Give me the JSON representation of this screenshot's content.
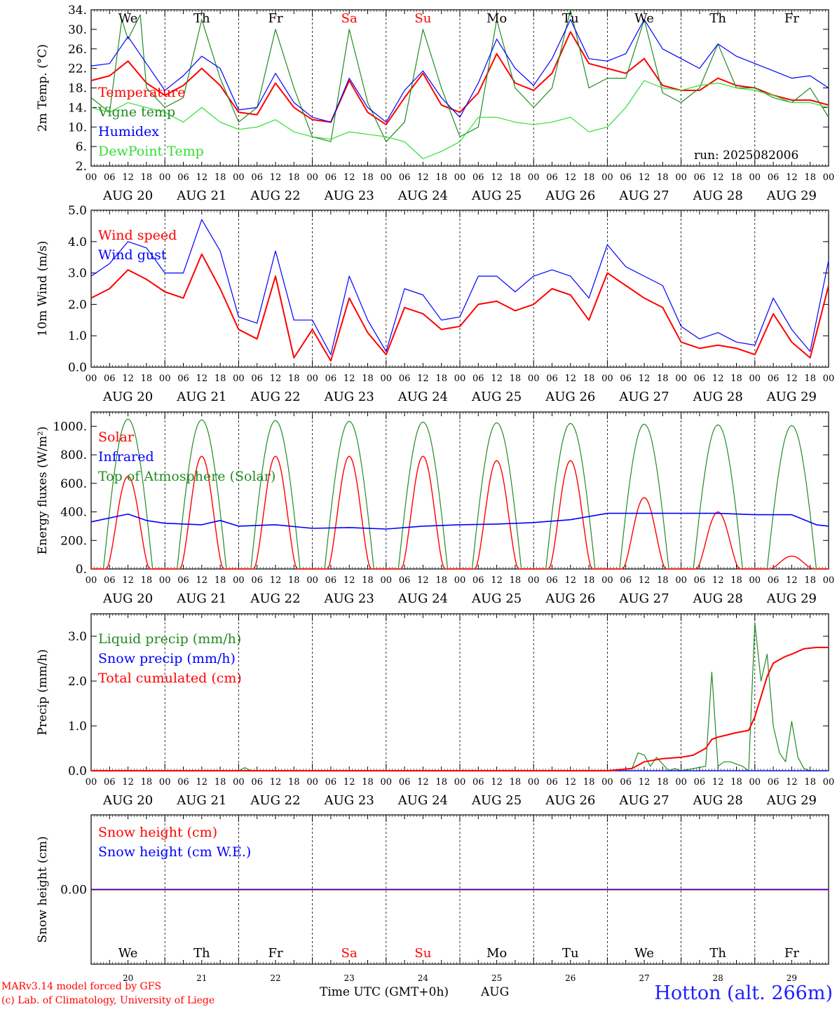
{
  "credits": [
    "MARv3.14 model forced by GFS",
    "(c) Lab. of Climatology, University of Liege"
  ],
  "run": "run: 2025082006",
  "station": "Hotton (alt. 266m)",
  "x_title": "Time UTC (GMT+0h)",
  "month": "AUG",
  "hour_ticks": [
    "00",
    "06",
    "12",
    "18"
  ],
  "end_tick": "00",
  "day_labels": [
    "AUG 20",
    "AUG 21",
    "AUG 22",
    "AUG 23",
    "AUG 24",
    "AUG 25",
    "AUG 26",
    "AUG 27",
    "AUG 28",
    "AUG 29"
  ],
  "day_numbers": [
    "20",
    "21",
    "22",
    "23",
    "24",
    "25",
    "26",
    "27",
    "28",
    "29"
  ],
  "weekdays": [
    "We",
    "Th",
    "Fr",
    "Sa",
    "Su",
    "Mo",
    "Tu",
    "We",
    "Th",
    "Fr"
  ],
  "weekend_color": "#ff0000",
  "colors": {
    "red": "#ff0000",
    "green": "#228B22",
    "blue": "#0000ff",
    "lightgreen": "#33dd33",
    "station": "#1f1fff"
  },
  "chart_data": [
    {
      "type": "line",
      "ylabel": "2m Temp. (°C)",
      "ylim": [
        2,
        34
      ],
      "yticks": [
        "2.",
        "6.",
        "10.",
        "14.",
        "18.",
        "22.",
        "26.",
        "30.",
        "34."
      ],
      "x_unit": "hours since AUG 20 00 UTC",
      "series": [
        {
          "name": "Temperature",
          "color": "red",
          "x": [
            0,
            6,
            12,
            18,
            24,
            30,
            36,
            42,
            48,
            54,
            60,
            66,
            72,
            78,
            84,
            90,
            96,
            102,
            108,
            114,
            120,
            126,
            132,
            138,
            144,
            150,
            156,
            162,
            168,
            174,
            180,
            186,
            192,
            198,
            204,
            210,
            216,
            222,
            228,
            234,
            240
          ],
          "y": [
            19.5,
            20.5,
            23.5,
            19,
            16.5,
            18.5,
            22,
            18.5,
            13,
            12.5,
            19,
            14,
            11.5,
            11,
            19.5,
            13,
            10.5,
            16,
            21,
            14.5,
            13,
            17,
            25,
            19,
            17.5,
            21,
            29.5,
            23,
            22,
            21,
            24,
            18.5,
            17.5,
            17.5,
            20,
            18.5,
            18,
            16.5,
            15.5,
            15.5,
            14.5
          ]
        },
        {
          "name": "Vigne temp",
          "color": "green",
          "x": [
            0,
            6,
            10,
            12,
            16,
            18,
            24,
            30,
            36,
            42,
            48,
            54,
            60,
            66,
            72,
            78,
            84,
            90,
            96,
            102,
            108,
            114,
            120,
            126,
            132,
            138,
            144,
            150,
            156,
            162,
            168,
            174,
            180,
            186,
            192,
            198,
            204,
            210,
            216,
            222,
            228,
            234,
            240
          ],
          "y": [
            16,
            13,
            32,
            28,
            33,
            18,
            14,
            16,
            32,
            20,
            11,
            14,
            30,
            18,
            8,
            7,
            30,
            15,
            7,
            11,
            30,
            18,
            8,
            10,
            32,
            18,
            14,
            18,
            34,
            18,
            20,
            20,
            32,
            17,
            15,
            18,
            27,
            18,
            18,
            16,
            15,
            18,
            12
          ]
        },
        {
          "name": "Humidex",
          "color": "blue",
          "x": [
            0,
            6,
            12,
            18,
            24,
            30,
            36,
            42,
            48,
            54,
            60,
            66,
            72,
            78,
            84,
            90,
            96,
            102,
            108,
            114,
            120,
            126,
            132,
            138,
            144,
            150,
            156,
            162,
            168,
            174,
            180,
            186,
            192,
            198,
            204,
            210,
            216,
            222,
            228,
            234,
            240
          ],
          "y": [
            22.5,
            23,
            28.5,
            23,
            17.5,
            20.5,
            24.5,
            22,
            13.5,
            14,
            21,
            15,
            12,
            11,
            20,
            14,
            11,
            17.5,
            21.5,
            16,
            12,
            19,
            28,
            22,
            18.5,
            24,
            32,
            24,
            23.5,
            25,
            32,
            26,
            24,
            22,
            27,
            24.5,
            23,
            21.5,
            20,
            20.5,
            18
          ]
        },
        {
          "name": "DewPoint Temp",
          "color": "lightgreen",
          "x": [
            0,
            6,
            12,
            18,
            24,
            30,
            36,
            42,
            48,
            54,
            60,
            66,
            72,
            78,
            84,
            90,
            96,
            102,
            108,
            114,
            120,
            126,
            132,
            138,
            144,
            150,
            156,
            162,
            168,
            174,
            180,
            186,
            192,
            198,
            204,
            210,
            216,
            222,
            228,
            234,
            240
          ],
          "y": [
            14,
            13,
            15,
            14,
            13,
            11,
            14,
            11,
            9.5,
            10,
            11.5,
            9,
            8,
            7.5,
            9,
            8.5,
            8,
            7,
            3.5,
            5,
            7,
            12,
            12,
            11,
            10.5,
            11,
            12,
            9,
            10,
            14,
            19.5,
            18,
            17.5,
            18.5,
            19,
            18,
            17.5,
            16.5,
            15,
            15,
            14
          ]
        }
      ]
    },
    {
      "type": "line",
      "ylabel": "10m Wind (m/s)",
      "ylim": [
        0,
        5
      ],
      "yticks": [
        "0.0",
        "1.0",
        "2.0",
        "3.0",
        "4.0",
        "5.0"
      ],
      "x_unit": "hours since AUG 20 00 UTC",
      "series": [
        {
          "name": "Wind speed",
          "color": "red",
          "x": [
            0,
            6,
            12,
            18,
            24,
            30,
            36,
            42,
            48,
            54,
            60,
            66,
            72,
            78,
            84,
            90,
            96,
            102,
            108,
            114,
            120,
            126,
            132,
            138,
            144,
            150,
            156,
            162,
            168,
            174,
            180,
            186,
            192,
            198,
            204,
            210,
            216,
            222,
            228,
            234,
            240
          ],
          "y": [
            2.2,
            2.5,
            3.1,
            2.8,
            2.4,
            2.2,
            3.6,
            2.5,
            1.2,
            0.9,
            2.9,
            0.3,
            1.2,
            0.2,
            2.2,
            1.1,
            0.4,
            1.9,
            1.7,
            1.2,
            1.3,
            2.0,
            2.1,
            1.8,
            2.0,
            2.5,
            2.3,
            1.5,
            3.0,
            2.6,
            2.2,
            1.9,
            0.8,
            0.6,
            0.7,
            0.6,
            0.4,
            1.7,
            0.8,
            0.3,
            2.6
          ]
        },
        {
          "name": "Wind gust",
          "color": "blue",
          "x": [
            0,
            6,
            12,
            18,
            24,
            30,
            36,
            42,
            48,
            54,
            60,
            66,
            72,
            78,
            84,
            90,
            96,
            102,
            108,
            114,
            120,
            126,
            132,
            138,
            144,
            150,
            156,
            162,
            168,
            174,
            180,
            186,
            192,
            198,
            204,
            210,
            216,
            222,
            228,
            234,
            240
          ],
          "y": [
            2.9,
            3.3,
            4.0,
            3.8,
            3.0,
            3.0,
            4.7,
            3.7,
            1.6,
            1.4,
            3.7,
            1.5,
            1.5,
            0.4,
            2.9,
            1.5,
            0.5,
            2.5,
            2.3,
            1.5,
            1.6,
            2.9,
            2.9,
            2.4,
            2.9,
            3.1,
            2.9,
            2.2,
            3.9,
            3.2,
            2.9,
            2.6,
            1.3,
            0.9,
            1.1,
            0.8,
            0.7,
            2.2,
            1.2,
            0.5,
            3.4
          ]
        }
      ]
    },
    {
      "type": "line",
      "ylabel": "Energy fluxes (W/m²)",
      "ylim": [
        0,
        1100
      ],
      "yticks": [
        "0.",
        "200.",
        "400.",
        "600.",
        "800.",
        "1000."
      ],
      "x_unit": "hours since AUG 20 00 UTC",
      "solar_peaks": [
        650,
        790,
        790,
        790,
        790,
        760,
        760,
        500,
        400,
        90
      ],
      "toa_peaks": [
        1050,
        1045,
        1040,
        1035,
        1030,
        1025,
        1020,
        1015,
        1010,
        1005
      ],
      "series": [
        {
          "name": "Solar",
          "color": "red"
        },
        {
          "name": "Infrared",
          "color": "blue",
          "x": [
            0,
            12,
            18,
            24,
            36,
            42,
            48,
            60,
            72,
            84,
            96,
            108,
            120,
            132,
            144,
            156,
            168,
            180,
            192,
            204,
            216,
            228,
            236,
            240
          ],
          "y": [
            330,
            385,
            340,
            320,
            310,
            340,
            300,
            310,
            285,
            290,
            280,
            300,
            310,
            315,
            325,
            345,
            390,
            390,
            390,
            390,
            380,
            380,
            310,
            300
          ]
        },
        {
          "name": "Top of Atmosphere (Solar)",
          "color": "green"
        }
      ]
    },
    {
      "type": "line",
      "ylabel": "Precip (mm/h)",
      "ylim": [
        0,
        3.5
      ],
      "yticks": [
        "0.0",
        "1.0",
        "2.0",
        "3.0"
      ],
      "x_unit": "hours since AUG 20 00 UTC",
      "series": [
        {
          "name": "Liquid precip (mm/h)",
          "color": "green",
          "x": [
            0,
            48,
            50,
            52,
            168,
            176,
            178,
            180,
            182,
            184,
            188,
            190,
            192,
            200,
            202,
            204,
            206,
            208,
            212,
            214,
            216,
            218,
            220,
            222,
            224,
            226,
            228,
            230,
            232,
            234,
            240
          ],
          "y": [
            0,
            0,
            0.07,
            0,
            0,
            0.05,
            0.4,
            0.35,
            0.1,
            0.3,
            0,
            0.05,
            0,
            0.1,
            2.2,
            0.1,
            0.2,
            0.2,
            0.1,
            0,
            3.3,
            2.0,
            2.6,
            1.0,
            0.4,
            0.2,
            1.1,
            0.3,
            0.05,
            0,
            0
          ]
        },
        {
          "name": "Snow precip (mm/h)",
          "color": "blue",
          "x": [
            0,
            240
          ],
          "y": [
            0,
            0
          ]
        },
        {
          "name": "Total cumulated (cm)",
          "color": "red",
          "x": [
            0,
            168,
            176,
            180,
            186,
            192,
            196,
            200,
            202,
            204,
            210,
            214,
            216,
            220,
            222,
            226,
            228,
            232,
            236,
            240
          ],
          "y": [
            0,
            0,
            0.05,
            0.2,
            0.27,
            0.3,
            0.35,
            0.5,
            0.7,
            0.75,
            0.85,
            0.9,
            1.2,
            2.1,
            2.4,
            2.55,
            2.6,
            2.72,
            2.75,
            2.75
          ]
        }
      ]
    },
    {
      "type": "line",
      "ylabel": "Snow height (cm)",
      "ylim": [
        -1,
        1
      ],
      "yticks": [
        "0.00"
      ],
      "x_unit": "hours since AUG 20 00 UTC",
      "series": [
        {
          "name": "Snow height (cm)",
          "color": "red",
          "x": [
            0,
            240
          ],
          "y": [
            0,
            0
          ]
        },
        {
          "name": "Snow height (cm W.E.)",
          "color": "blue",
          "x": [
            0,
            240
          ],
          "y": [
            0,
            0
          ]
        }
      ]
    }
  ]
}
